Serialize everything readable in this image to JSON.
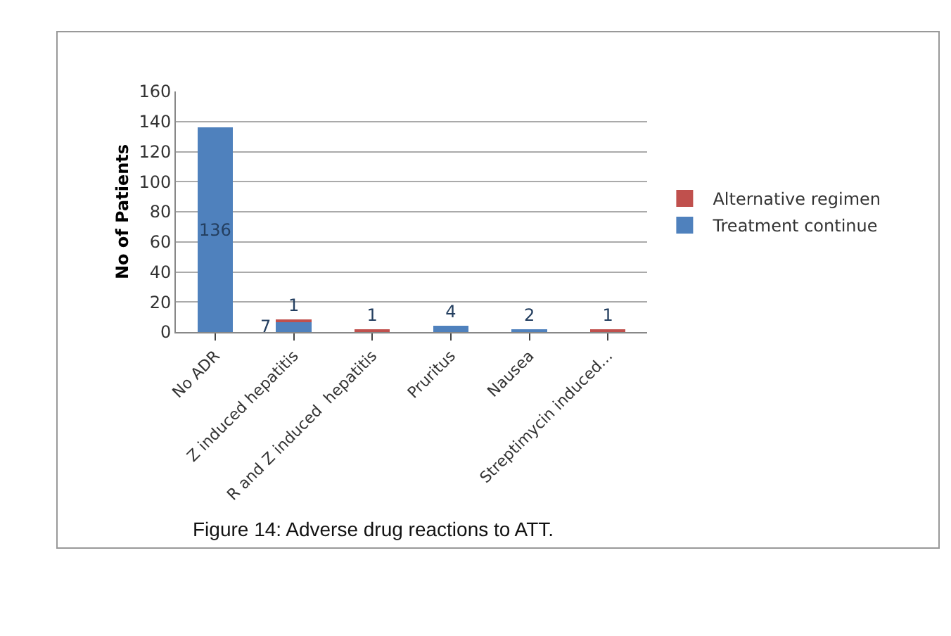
{
  "chart_data": {
    "type": "bar",
    "stacked": true,
    "categories": [
      "No ADR",
      "Z induced hepatitis",
      "R and Z induced  hepatitis",
      "Pruritus",
      "Nausea",
      "Streptimycin induced..."
    ],
    "ylabel": "No of Patients",
    "ylim": [
      0,
      160
    ],
    "yticks": [
      0,
      20,
      40,
      60,
      80,
      100,
      120,
      140,
      160
    ],
    "grid": "y",
    "legend": "right",
    "data_labels": true,
    "series": [
      {
        "name": "Treatment continue",
        "color": "#4f81bd",
        "values": [
          136,
          7,
          null,
          4,
          2,
          null
        ]
      },
      {
        "name": "Alternative regimen",
        "color": "#c0504d",
        "values": [
          null,
          1,
          1,
          null,
          null,
          1
        ]
      }
    ],
    "annotations": [
      "Figure 14: Adverse drug reactions to ATT."
    ]
  }
}
